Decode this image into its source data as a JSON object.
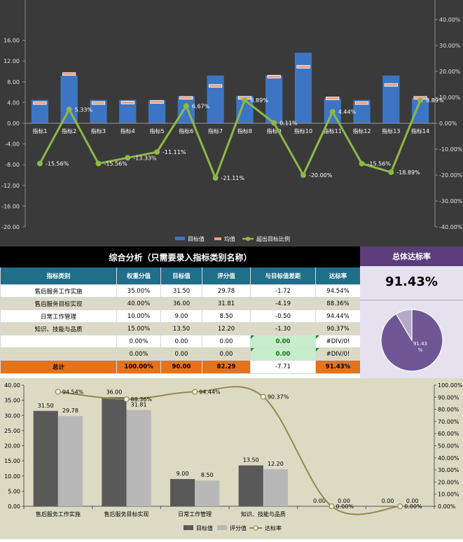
{
  "chart_data": [
    {
      "type": "bar",
      "categories": [
        "指标1",
        "指标2",
        "指标3",
        "指标4",
        "指标5",
        "指标6",
        "指标7",
        "指标8",
        "指标9",
        "指标10",
        "指标11",
        "指标12",
        "指标13",
        "指标14"
      ],
      "series": [
        {
          "name": "目标值",
          "type": "bar",
          "axis": "left",
          "values": [
            4.5,
            9.2,
            4.5,
            4.5,
            4.5,
            5.2,
            9.2,
            5.3,
            9.2,
            13.6,
            4.8,
            4.5,
            9.2,
            4.8
          ]
        },
        {
          "name": "均值",
          "type": "marker",
          "axis": "left",
          "values": [
            3.9,
            9.5,
            3.9,
            4.0,
            4.1,
            4.9,
            7.2,
            4.9,
            9.0,
            10.9,
            4.8,
            3.9,
            7.4,
            4.9
          ]
        },
        {
          "name": "超出目标比例",
          "type": "line",
          "axis": "right",
          "values": [
            -15.56,
            5.33,
            -15.56,
            -13.33,
            -11.11,
            6.67,
            -21.11,
            8.89,
            0.11,
            -20.0,
            4.44,
            -15.56,
            -18.89,
            8.89
          ],
          "labels": [
            "-15.56%",
            "5.33%",
            "-15.56%",
            "-13.33%",
            "-11.11%",
            "6.67%",
            "-21.11%",
            "8.89%",
            "0.11%",
            "-20.00%",
            "4.44%",
            "-15.56%",
            "-18.89%",
            "8.89%"
          ]
        }
      ],
      "ylim": [
        -20,
        20
      ],
      "yticks": [
        "16.00",
        "12.00",
        "8.00",
        "4.00",
        "0.00",
        "-4.00",
        "-8.00",
        "-12.00",
        "-16.00",
        "-20.00"
      ],
      "y2lim": [
        -40,
        40
      ],
      "y2ticks": [
        "40.00%",
        "30.00%",
        "20.00%",
        "10.00%",
        "0.00%",
        "-10.00%",
        "-20.00%",
        "-30.00%",
        "-40.00%"
      ],
      "legend": [
        "目标值",
        "均值",
        "超出目标比例"
      ],
      "legend_position": "bottom",
      "colors": {
        "bar": "#3d74c4",
        "mean": "#f0a080",
        "line": "#8db848",
        "background": "#3a3a3a"
      }
    },
    {
      "type": "table",
      "title": "综合分析（只需要录入指标类别名称）",
      "headers": [
        "指标类别",
        "权重分值",
        "目标值",
        "评分值",
        "与目标值差距",
        "达标率"
      ],
      "rows": [
        [
          "售后服务工作实施",
          "35.00%",
          "31.50",
          "29.78",
          "-1.72",
          "94.54%"
        ],
        [
          "售后服务目标实现",
          "40.00%",
          "36.00",
          "31.81",
          "-4.19",
          "88.36%"
        ],
        [
          "日常工作管理",
          "10.00%",
          "9.00",
          "8.50",
          "-0.50",
          "94.44%"
        ],
        [
          "知识、技能与品质",
          "15.00%",
          "13.50",
          "12.20",
          "-1.30",
          "90.37%"
        ],
        [
          "",
          "0.00%",
          "0.00",
          "0.00",
          "0.00",
          "#DIV/0!"
        ],
        [
          "",
          "0.00%",
          "0.00",
          "0.00",
          "0.00",
          "#DIV/0!"
        ]
      ],
      "total": [
        "总计",
        "100.00%",
        "90.00",
        "82.29",
        "-7.71",
        "91.43%"
      ]
    },
    {
      "type": "pie",
      "title": "总体达标率",
      "value_label": "91.43%",
      "slice_label": "91.43 %",
      "values": [
        91.43,
        8.57
      ],
      "colors": [
        "#6f5796",
        "#b5a9c8"
      ]
    },
    {
      "type": "bar",
      "categories": [
        "售后服务工作实施",
        "售后服务目标实现",
        "日常工作管理",
        "知识、技能与品质",
        "",
        ""
      ],
      "series": [
        {
          "name": "目标值",
          "type": "bar",
          "axis": "left",
          "values": [
            31.5,
            36.0,
            9.0,
            13.5,
            0,
            0
          ],
          "labels": [
            "31.50",
            "36.00",
            "9.00",
            "13.50",
            "0.00",
            "0.00"
          ]
        },
        {
          "name": "评分值",
          "type": "bar",
          "axis": "left",
          "values": [
            29.78,
            31.81,
            8.5,
            12.2,
            0,
            0
          ],
          "labels": [
            "29.78",
            "31.81",
            "8.50",
            "12.20",
            "0.00",
            "0.00"
          ]
        },
        {
          "name": "达标率",
          "type": "line",
          "axis": "right",
          "values": [
            94.54,
            88.36,
            94.44,
            90.37,
            0,
            0
          ],
          "labels": [
            "94.54%",
            "88.36%",
            "94.44%",
            "90.37%",
            "0.00%",
            "0.00%"
          ]
        }
      ],
      "ylim": [
        0,
        40
      ],
      "yticks": [
        "40.00",
        "35.00",
        "30.00",
        "25.00",
        "20.00",
        "15.00",
        "10.00",
        "5.00",
        "0.00"
      ],
      "y2lim": [
        0,
        100
      ],
      "y2ticks": [
        "100.00%",
        "90.00%",
        "80.00%",
        "70.00%",
        "60.00%",
        "50.00%",
        "40.00%",
        "30.00%",
        "20.00%",
        "10.00%",
        "0.00%"
      ],
      "legend": [
        "目标值",
        "评分值",
        "达标率"
      ],
      "legend_position": "bottom",
      "colors": {
        "target": "#595959",
        "score": "#b8b8b8",
        "line": "#908c50",
        "background": "#dcdac3"
      }
    }
  ]
}
